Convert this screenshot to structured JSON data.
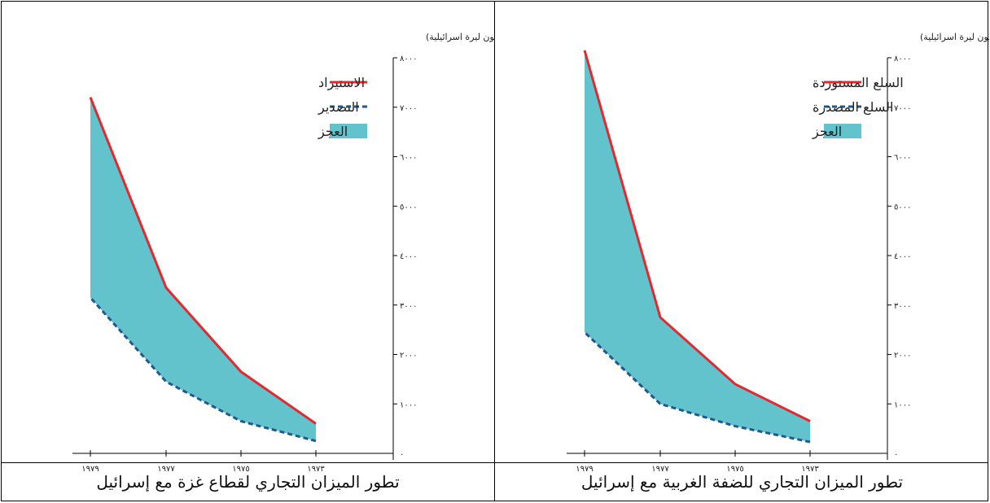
{
  "chart_data": [
    {
      "type": "area",
      "title": "تطور الميزان التجاري للضفة الغربية مع إسرائيل",
      "unit_label": "(مليون ليرة اسرائيلية)",
      "x": [
        "١٩٧٣",
        "١٩٧٥",
        "١٩٧٧",
        "١٩٧٩"
      ],
      "x_direction": "right-to-left",
      "ylim": [
        0,
        8000
      ],
      "y_ticks": [
        "٠",
        "١٠٠٠",
        "٢٠٠٠",
        "٣٠٠٠",
        "٤٠٠٠",
        "٥٠٠٠",
        "٦٠٠٠",
        "٧٠٠٠",
        "٨٠٠٠"
      ],
      "series": [
        {
          "name": "السلع المستوردة",
          "values": [
            650,
            1400,
            2750,
            8150
          ],
          "color": "#e8272d",
          "style": "solid"
        },
        {
          "name": "السلع المصدرة",
          "values": [
            230,
            550,
            1000,
            2450
          ],
          "color": "#1e5a8e",
          "style": "dashed"
        }
      ],
      "fill": {
        "name": "العجز",
        "color": "#62c3cc"
      },
      "legend_position": "top-right"
    },
    {
      "type": "area",
      "title": "تطور الميزان التجاري لقطاع غزة مع إسرائيل",
      "unit_label": "(مليون ليرة اسرائيلية)",
      "x": [
        "١٩٧٣",
        "١٩٧٥",
        "١٩٧٧",
        "١٩٧٩"
      ],
      "x_direction": "right-to-left",
      "ylim": [
        0,
        8000
      ],
      "y_ticks": [
        "٠",
        "١٠٠٠",
        "٢٠٠٠",
        "٣٠٠٠",
        "٤٠٠٠",
        "٥٠٠٠",
        "٦٠٠٠",
        "٧٠٠٠",
        "٨٠٠٠"
      ],
      "series": [
        {
          "name": "الاستيراد",
          "values": [
            600,
            1650,
            3350,
            7200
          ],
          "color": "#e8272d",
          "style": "solid"
        },
        {
          "name": "التصدير",
          "values": [
            250,
            650,
            1450,
            3150
          ],
          "color": "#1e5a8e",
          "style": "dashed"
        }
      ],
      "fill": {
        "name": "العجز",
        "color": "#62c3cc"
      },
      "legend_position": "top-right"
    }
  ]
}
